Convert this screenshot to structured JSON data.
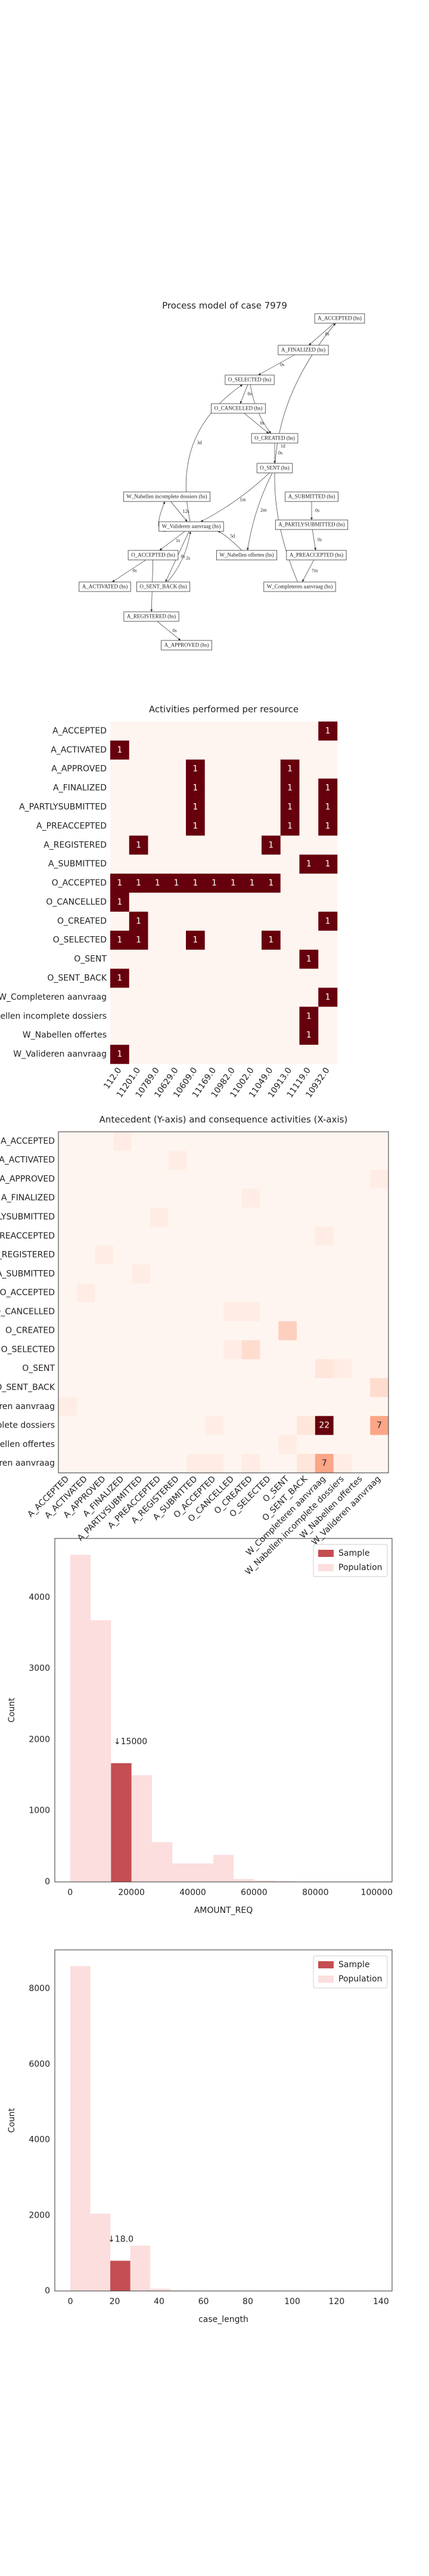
{
  "process_model": {
    "title": "Process model of case 7979",
    "nodes": [
      "A_ACCEPTED (hs)",
      "A_FINALIZED (hs)",
      "O_SELECTED (hs)",
      "O_CANCELLED (hs)",
      "O_CREATED (hs)",
      "O_SENT (hs)",
      "W_Nabellen incomplete dossiers (hs)",
      "A_SUBMITTED (hs)",
      "A_PARTLYSUBMITTED (hs)",
      "W_Valideren aanvraag (hs)",
      "O_ACCEPTED (hs)",
      "W_Nabellen offertes (hs)",
      "A_PREACCEPTED (hs)",
      "A_ACTIVATED (hs)",
      "O_SENT_BACK (hs)",
      "W_Completeren aanvraag (hs)",
      "A_REGISTERED (hs)",
      "A_APPROVED (hs)"
    ],
    "edges": [
      "0s",
      "0s",
      "0s",
      "1s",
      "0s",
      "0s",
      "2m",
      "1m",
      "0s",
      "0s",
      "7m",
      "1d",
      "12s",
      "1s",
      "0s",
      "0s",
      "0s",
      "0s",
      "5d",
      "2s",
      "1d",
      "3d"
    ]
  },
  "chart_data": [
    {
      "type": "heatmap",
      "title": "Activities performed per resource",
      "categories": [
        "112.0",
        "11201.0",
        "10789.0",
        "10629.0",
        "10609.0",
        "11169.0",
        "10982.0",
        "11002.0",
        "11049.0",
        "10913.0",
        "11119.0",
        "10932.0"
      ],
      "rows": [
        "A_ACCEPTED",
        "A_ACTIVATED",
        "A_APPROVED",
        "A_FINALIZED",
        "A_PARTLYSUBMITTED",
        "A_PREACCEPTED",
        "A_REGISTERED",
        "A_SUBMITTED",
        "O_ACCEPTED",
        "O_CANCELLED",
        "O_CREATED",
        "O_SELECTED",
        "O_SENT",
        "O_SENT_BACK",
        "W_Completeren aanvraag",
        "W_Nabellen incomplete dossiers",
        "W_Nabellen offertes",
        "W_Valideren aanvraag"
      ],
      "values": [
        [
          0,
          0,
          0,
          0,
          0,
          0,
          0,
          0,
          0,
          0,
          0,
          1
        ],
        [
          1,
          0,
          0,
          0,
          0,
          0,
          0,
          0,
          0,
          0,
          0,
          0
        ],
        [
          0,
          0,
          0,
          0,
          1,
          0,
          0,
          0,
          0,
          1,
          0,
          0
        ],
        [
          0,
          0,
          0,
          0,
          1,
          0,
          0,
          0,
          0,
          1,
          0,
          1
        ],
        [
          0,
          0,
          0,
          0,
          1,
          0,
          0,
          0,
          0,
          1,
          0,
          1
        ],
        [
          0,
          0,
          0,
          0,
          1,
          0,
          0,
          0,
          0,
          1,
          0,
          1
        ],
        [
          0,
          1,
          0,
          0,
          0,
          0,
          0,
          0,
          1,
          0,
          0,
          0
        ],
        [
          0,
          0,
          0,
          0,
          0,
          0,
          0,
          0,
          0,
          0,
          1,
          1
        ],
        [
          1,
          1,
          1,
          1,
          1,
          1,
          1,
          1,
          1,
          0,
          0,
          0
        ],
        [
          1,
          0,
          0,
          0,
          0,
          0,
          0,
          0,
          0,
          0,
          0,
          0
        ],
        [
          0,
          1,
          0,
          0,
          0,
          0,
          0,
          0,
          0,
          0,
          0,
          1
        ],
        [
          1,
          1,
          0,
          0,
          1,
          0,
          0,
          0,
          1,
          0,
          0,
          0
        ],
        [
          0,
          0,
          0,
          0,
          0,
          0,
          0,
          0,
          0,
          0,
          1,
          0
        ],
        [
          1,
          0,
          0,
          0,
          0,
          0,
          0,
          0,
          0,
          0,
          0,
          0
        ],
        [
          0,
          0,
          0,
          0,
          0,
          0,
          0,
          0,
          0,
          0,
          0,
          1
        ],
        [
          0,
          0,
          0,
          0,
          0,
          0,
          0,
          0,
          0,
          0,
          1,
          0
        ],
        [
          0,
          0,
          0,
          0,
          0,
          0,
          0,
          0,
          0,
          0,
          1,
          0
        ],
        [
          1,
          0,
          0,
          0,
          0,
          0,
          0,
          0,
          0,
          0,
          0,
          0
        ]
      ]
    },
    {
      "type": "heatmap",
      "title": "Antecedent (Y-axis) and consequence activities (X-axis)",
      "categories": [
        "A_ACCEPTED",
        "A_ACTIVATED",
        "A_APPROVED",
        "A_FINALIZED",
        "A_PARTLYSUBMITTED",
        "A_PREACCEPTED",
        "A_REGISTERED",
        "A_SUBMITTED",
        "O_ACCEPTED",
        "O_CANCELLED",
        "O_CREATED",
        "O_SELECTED",
        "O_SENT",
        "O_SENT_BACK",
        "W_Completeren aanvraag",
        "W_Nabellen incomplete dossiers",
        "W_Nabellen offertes",
        "W_Valideren aanvraag"
      ],
      "rows": [
        "A_ACCEPTED",
        "A_ACTIVATED",
        "A_APPROVED",
        "A_FINALIZED",
        "A_PARTLYSUBMITTED",
        "A_PREACCEPTED",
        "A_REGISTERED",
        "A_SUBMITTED",
        "O_ACCEPTED",
        "O_CANCELLED",
        "O_CREATED",
        "O_SELECTED",
        "O_SENT",
        "O_SENT_BACK",
        "W_Completeren aanvraag",
        "W_Nabellen incomplete dossiers",
        "W_Nabellen offertes",
        "W_Valideren aanvraag"
      ],
      "values": [
        [
          0,
          0,
          0,
          1,
          0,
          0,
          0,
          0,
          0,
          0,
          0,
          0,
          0,
          0,
          0,
          0,
          0,
          0
        ],
        [
          0,
          0,
          0,
          0,
          0,
          0,
          1,
          0,
          0,
          0,
          0,
          0,
          0,
          0,
          0,
          0,
          0,
          0
        ],
        [
          0,
          0,
          0,
          0,
          0,
          0,
          0,
          0,
          0,
          0,
          0,
          0,
          0,
          0,
          0,
          0,
          0,
          1
        ],
        [
          0,
          0,
          0,
          0,
          0,
          0,
          0,
          0,
          0,
          0,
          1,
          0,
          0,
          0,
          0,
          0,
          0,
          0
        ],
        [
          0,
          0,
          0,
          0,
          0,
          1,
          0,
          0,
          0,
          0,
          0,
          0,
          0,
          0,
          0,
          0,
          0,
          0
        ],
        [
          0,
          0,
          0,
          0,
          0,
          0,
          0,
          0,
          0,
          0,
          0,
          0,
          0,
          0,
          1,
          0,
          0,
          0
        ],
        [
          0,
          0,
          1,
          0,
          0,
          0,
          0,
          0,
          0,
          0,
          0,
          0,
          0,
          0,
          0,
          0,
          0,
          0
        ],
        [
          0,
          0,
          0,
          0,
          1,
          0,
          0,
          0,
          0,
          0,
          0,
          0,
          0,
          0,
          0,
          0,
          0,
          0
        ],
        [
          0,
          1,
          0,
          0,
          0,
          0,
          0,
          0,
          0,
          0,
          0,
          0,
          0,
          0,
          0,
          0,
          0,
          0
        ],
        [
          0,
          0,
          0,
          0,
          0,
          0,
          0,
          0,
          0,
          1,
          1,
          0,
          0,
          0,
          0,
          0,
          0,
          0
        ],
        [
          0,
          0,
          0,
          0,
          0,
          0,
          0,
          0,
          0,
          0,
          0,
          0,
          4,
          0,
          0,
          0,
          0,
          0
        ],
        [
          0,
          0,
          0,
          0,
          0,
          0,
          0,
          0,
          0,
          1,
          3,
          0,
          0,
          0,
          0,
          0,
          0,
          0
        ],
        [
          0,
          0,
          0,
          0,
          0,
          0,
          0,
          0,
          0,
          0,
          0,
          0,
          0,
          0,
          2,
          1,
          0,
          0
        ],
        [
          0,
          0,
          0,
          0,
          0,
          0,
          0,
          0,
          0,
          0,
          0,
          0,
          0,
          0,
          0,
          0,
          0,
          3
        ],
        [
          1,
          0,
          0,
          0,
          0,
          0,
          0,
          0,
          0,
          0,
          0,
          0,
          0,
          0,
          0,
          0,
          0,
          0
        ],
        [
          0,
          0,
          0,
          0,
          0,
          0,
          0,
          0,
          1,
          0,
          0,
          0,
          0,
          2,
          22,
          0,
          0,
          7
        ],
        [
          0,
          0,
          0,
          0,
          0,
          0,
          0,
          0,
          0,
          0,
          0,
          0,
          1,
          0,
          0,
          0,
          0,
          0
        ],
        [
          0,
          0,
          0,
          0,
          0,
          0,
          0,
          1,
          1,
          0,
          1,
          0,
          0,
          2,
          7,
          1,
          0,
          0
        ]
      ],
      "value_labels": [
        [
          null,
          null,
          null,
          null,
          null,
          null,
          null,
          null,
          null,
          null,
          null,
          null,
          null,
          null,
          null,
          null,
          null,
          null
        ],
        [
          null,
          null,
          null,
          null,
          null,
          null,
          null,
          null,
          null,
          null,
          null,
          null,
          null,
          null,
          null,
          null,
          null,
          null
        ],
        [
          null,
          null,
          null,
          null,
          null,
          null,
          null,
          null,
          null,
          null,
          null,
          null,
          null,
          null,
          null,
          null,
          null,
          null
        ],
        [
          null,
          null,
          null,
          null,
          null,
          null,
          null,
          null,
          null,
          null,
          null,
          null,
          null,
          null,
          null,
          null,
          null,
          null
        ],
        [
          null,
          null,
          null,
          null,
          null,
          null,
          null,
          null,
          null,
          null,
          null,
          null,
          null,
          null,
          null,
          null,
          null,
          null
        ],
        [
          null,
          null,
          null,
          null,
          null,
          null,
          null,
          null,
          null,
          null,
          null,
          null,
          null,
          null,
          null,
          null,
          null,
          null
        ],
        [
          null,
          null,
          null,
          null,
          null,
          null,
          null,
          null,
          null,
          null,
          null,
          null,
          null,
          null,
          null,
          null,
          null,
          null
        ],
        [
          null,
          null,
          null,
          null,
          null,
          null,
          null,
          null,
          null,
          null,
          null,
          null,
          null,
          null,
          null,
          null,
          null,
          null
        ],
        [
          null,
          null,
          null,
          null,
          null,
          null,
          null,
          null,
          null,
          null,
          null,
          null,
          null,
          null,
          null,
          null,
          null,
          null
        ],
        [
          null,
          null,
          null,
          null,
          null,
          null,
          null,
          null,
          null,
          null,
          null,
          null,
          null,
          null,
          null,
          null,
          null,
          null
        ],
        [
          null,
          null,
          null,
          null,
          null,
          null,
          null,
          null,
          null,
          null,
          null,
          null,
          null,
          null,
          null,
          null,
          null,
          null
        ],
        [
          null,
          null,
          null,
          null,
          null,
          null,
          null,
          null,
          null,
          null,
          null,
          null,
          null,
          null,
          null,
          null,
          null,
          null
        ],
        [
          null,
          null,
          null,
          null,
          null,
          null,
          null,
          null,
          null,
          null,
          null,
          null,
          null,
          null,
          null,
          null,
          null,
          null
        ],
        [
          null,
          null,
          null,
          null,
          null,
          null,
          null,
          null,
          null,
          null,
          null,
          null,
          null,
          null,
          null,
          null,
          null,
          null
        ],
        [
          null,
          null,
          null,
          null,
          null,
          null,
          null,
          null,
          null,
          null,
          null,
          null,
          null,
          null,
          null,
          null,
          null,
          null
        ],
        [
          null,
          null,
          null,
          null,
          null,
          null,
          null,
          null,
          null,
          null,
          null,
          null,
          null,
          null,
          "22",
          null,
          null,
          "7"
        ],
        [
          null,
          null,
          null,
          null,
          null,
          null,
          null,
          null,
          null,
          null,
          null,
          null,
          null,
          null,
          null,
          null,
          null,
          null
        ],
        [
          null,
          null,
          null,
          null,
          null,
          null,
          null,
          null,
          null,
          null,
          null,
          null,
          null,
          null,
          "7",
          null,
          null,
          null
        ]
      ]
    },
    {
      "type": "histogram",
      "xlabel": "AMOUNT_REQ",
      "ylabel": "Count",
      "xlim": [
        -5000,
        105000
      ],
      "ylim": [
        0,
        4830
      ],
      "xticks": [
        0,
        20000,
        40000,
        60000,
        80000,
        100000
      ],
      "yticks": [
        0,
        1000,
        2000,
        3000,
        4000
      ],
      "legend": "upper right",
      "series": [
        {
          "name": "Sample",
          "color": "#c44e52",
          "bins": [
            13333,
            20000
          ],
          "values": [
            1670
          ]
        },
        {
          "name": "Population",
          "color": "#fbdedd",
          "bins": [
            0,
            6667,
            13333,
            20000,
            26667,
            33333,
            40000,
            46667,
            53333,
            60000,
            66667,
            73333,
            80000,
            86667,
            93333,
            100000
          ],
          "values": [
            4600,
            3680,
            1640,
            1500,
            560,
            260,
            260,
            380,
            40,
            20,
            10,
            5,
            5,
            0,
            5
          ]
        }
      ],
      "annotation": {
        "value": 15000,
        "label": "↓15000"
      }
    },
    {
      "type": "histogram",
      "xlabel": "case_length",
      "ylabel": "Count",
      "xlim": [
        -7,
        145
      ],
      "ylim": [
        0,
        9030
      ],
      "xticks": [
        0,
        20,
        40,
        60,
        80,
        100,
        120,
        140
      ],
      "yticks": [
        0,
        2000,
        4000,
        6000,
        8000
      ],
      "legend": "upper right",
      "series": [
        {
          "name": "Sample",
          "color": "#c44e52",
          "bins": [
            18,
            27
          ],
          "values": [
            800
          ]
        },
        {
          "name": "Population",
          "color": "#fbdedd",
          "bins": [
            0,
            9,
            18,
            27,
            36,
            45,
            54,
            63,
            72,
            81,
            90,
            99,
            108,
            117,
            126,
            135
          ],
          "values": [
            8600,
            2050,
            700,
            1200,
            60,
            15,
            5,
            3,
            2,
            1,
            0,
            0,
            0,
            0,
            1
          ]
        }
      ],
      "annotation": {
        "value": 18,
        "label": "↓18.0"
      }
    }
  ]
}
